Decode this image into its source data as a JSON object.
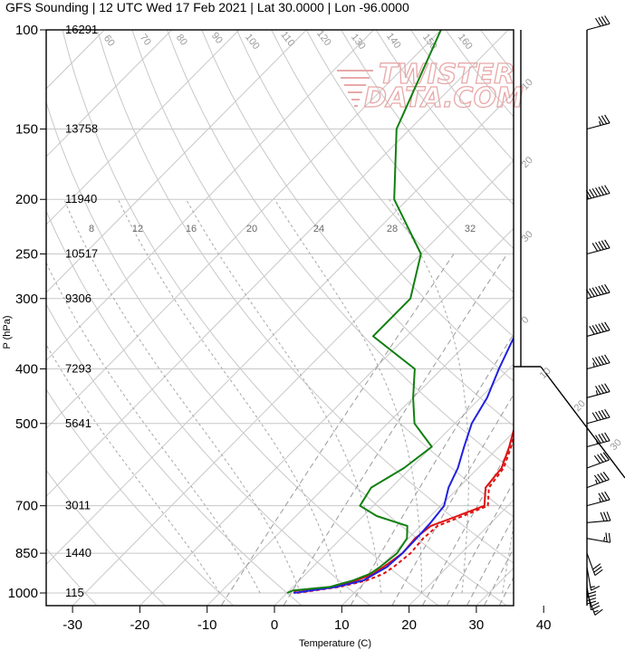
{
  "title": "GFS Sounding | 12 UTC Wed 17 Feb 2021 | Lat 30.0000 | Lon -96.0000",
  "watermark": {
    "line1": "TWISTER",
    "line2": "DATA.COM"
  },
  "chart_data": {
    "type": "line",
    "subtype": "skew-T log-p sounding",
    "xlabel": "Temperature (C)",
    "ylabel": "P (hPa)",
    "xlim": [
      -34,
      46
    ],
    "ylim": [
      1050,
      100
    ],
    "y_scale": "log",
    "x_ticks": [
      -30,
      -20,
      -10,
      0,
      10,
      20,
      30,
      40
    ],
    "pressure_levels": [
      {
        "p": 100,
        "label": "100",
        "height": "16291"
      },
      {
        "p": 150,
        "label": "150",
        "height": "13758"
      },
      {
        "p": 200,
        "label": "200",
        "height": "11940"
      },
      {
        "p": 250,
        "label": "250",
        "height": "10517"
      },
      {
        "p": 300,
        "label": "300",
        "height": "9306"
      },
      {
        "p": 400,
        "label": "400",
        "height": "7293"
      },
      {
        "p": 500,
        "label": "500",
        "height": "5641"
      },
      {
        "p": 700,
        "label": "700",
        "height": "3011"
      },
      {
        "p": 850,
        "label": "850",
        "height": "1440"
      },
      {
        "p": 1000,
        "label": "1000",
        "height": "115"
      }
    ],
    "mixing_ratio_labels": [
      "8",
      "12",
      "16",
      "20",
      "24",
      "28",
      "32"
    ],
    "isotherm_labels": [
      "60",
      "70",
      "80",
      "90",
      "100",
      "110",
      "120",
      "130",
      "140",
      "150",
      "160"
    ],
    "series": [
      {
        "role": "temperature",
        "color": "#e01010",
        "points": [
          [
            1000,
            1.0
          ],
          [
            990,
            1.0
          ],
          [
            975,
            6.0
          ],
          [
            950,
            8.5
          ],
          [
            925,
            10.0
          ],
          [
            900,
            10.5
          ],
          [
            880,
            10.8
          ],
          [
            850,
            11.3
          ],
          [
            800,
            11.0
          ],
          [
            760,
            11.5
          ],
          [
            730,
            14.0
          ],
          [
            700,
            16.5
          ],
          [
            650,
            14.0
          ],
          [
            600,
            13.5
          ],
          [
            550,
            11.5
          ],
          [
            500,
            9.0
          ],
          [
            450,
            8.3
          ],
          [
            400,
            5.0
          ],
          [
            350,
            0.0
          ],
          [
            300,
            -5.0
          ],
          [
            250,
            -7.5
          ],
          [
            200,
            -5.5
          ],
          [
            150,
            14.0
          ],
          [
            100,
            34.0
          ]
        ]
      },
      {
        "role": "virtual temperature",
        "color": "#e01010",
        "dashed": true,
        "points": [
          [
            1000,
            1.5
          ],
          [
            975,
            7.0
          ],
          [
            950,
            10.0
          ],
          [
            925,
            11.5
          ],
          [
            900,
            12.0
          ],
          [
            880,
            12.2
          ],
          [
            850,
            12.5
          ],
          [
            800,
            12.2
          ],
          [
            760,
            12.5
          ],
          [
            730,
            14.8
          ],
          [
            700,
            17.0
          ],
          [
            650,
            14.5
          ],
          [
            600,
            13.8
          ],
          [
            550,
            11.8
          ],
          [
            500,
            9.2
          ],
          [
            450,
            8.4
          ]
        ]
      },
      {
        "role": "parcel",
        "color": "#2020e0",
        "points": [
          [
            1000,
            1.0
          ],
          [
            975,
            6.5
          ],
          [
            950,
            9.5
          ],
          [
            900,
            11.0
          ],
          [
            850,
            11.3
          ],
          [
            800,
            11.2
          ],
          [
            750,
            11.0
          ],
          [
            700,
            10.5
          ],
          [
            650,
            8.5
          ],
          [
            600,
            7.0
          ],
          [
            550,
            4.8
          ],
          [
            500,
            2.5
          ],
          [
            450,
            1.0
          ],
          [
            400,
            -1.5
          ],
          [
            350,
            -4.0
          ],
          [
            300,
            -5.5
          ],
          [
            250,
            -7.5
          ],
          [
            200,
            -6.0
          ],
          [
            150,
            11.5
          ],
          [
            100,
            34.0
          ]
        ]
      },
      {
        "role": "dewpoint",
        "color": "#108010",
        "points": [
          [
            1000,
            0.0
          ],
          [
            990,
            0.5
          ],
          [
            975,
            5.5
          ],
          [
            950,
            8.0
          ],
          [
            925,
            9.5
          ],
          [
            900,
            10.0
          ],
          [
            850,
            10.5
          ],
          [
            800,
            9.8
          ],
          [
            760,
            8.0
          ],
          [
            730,
            2.0
          ],
          [
            700,
            -2.0
          ],
          [
            650,
            -3.0
          ],
          [
            600,
            -1.0
          ],
          [
            550,
            0.0
          ],
          [
            500,
            -6.0
          ],
          [
            450,
            -10.0
          ],
          [
            400,
            -14.0
          ],
          [
            350,
            -25.0
          ],
          [
            300,
            -25.0
          ],
          [
            250,
            -30.0
          ],
          [
            200,
            -42.0
          ],
          [
            150,
            -52.0
          ],
          [
            100,
            -60.0
          ]
        ]
      }
    ],
    "wind_barbs": [
      {
        "p": 1000,
        "dir": 340,
        "kt": 15
      },
      {
        "p": 975,
        "dir": 350,
        "kt": 20
      },
      {
        "p": 950,
        "dir": 0,
        "kt": 20
      },
      {
        "p": 925,
        "dir": 0,
        "kt": 20
      },
      {
        "p": 900,
        "dir": 350,
        "kt": 15
      },
      {
        "p": 850,
        "dir": 340,
        "kt": 30
      },
      {
        "p": 800,
        "dir": 280,
        "kt": 25
      },
      {
        "p": 750,
        "dir": 265,
        "kt": 30
      },
      {
        "p": 700,
        "dir": 255,
        "kt": 35
      },
      {
        "p": 650,
        "dir": 250,
        "kt": 45
      },
      {
        "p": 600,
        "dir": 250,
        "kt": 40
      },
      {
        "p": 550,
        "dir": 255,
        "kt": 45
      },
      {
        "p": 500,
        "dir": 255,
        "kt": 50
      },
      {
        "p": 450,
        "dir": 255,
        "kt": 45
      },
      {
        "p": 400,
        "dir": 255,
        "kt": 55
      },
      {
        "p": 350,
        "dir": 255,
        "kt": 60
      },
      {
        "p": 300,
        "dir": 255,
        "kt": 70
      },
      {
        "p": 250,
        "dir": 255,
        "kt": 50
      },
      {
        "p": 200,
        "dir": 255,
        "kt": 75
      },
      {
        "p": 150,
        "dir": 255,
        "kt": 35
      },
      {
        "p": 100,
        "dir": 255,
        "kt": 40
      }
    ],
    "hodograph_scale_labels": [
      "10",
      "20",
      "30",
      "0",
      "10",
      "20",
      "30"
    ]
  }
}
